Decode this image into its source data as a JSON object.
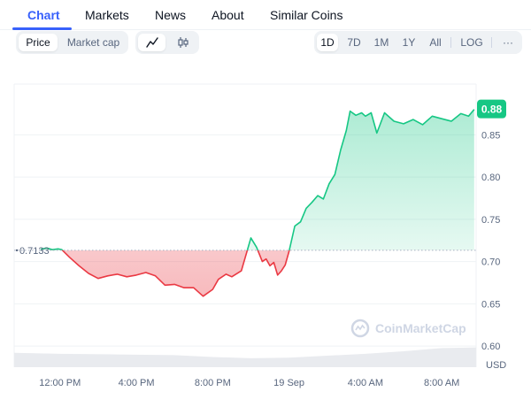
{
  "tabs": [
    {
      "label": "Chart"
    },
    {
      "label": "Markets"
    },
    {
      "label": "News"
    },
    {
      "label": "About"
    },
    {
      "label": "Similar Coins"
    }
  ],
  "toolbar": {
    "price_label": "Price",
    "market_cap_label": "Market cap",
    "line_icon": "line-chart-icon",
    "candle_icon": "candlestick-icon",
    "ranges": [
      "1D",
      "7D",
      "1M",
      "1Y",
      "All"
    ],
    "log_label": "LOG",
    "more_label": "···"
  },
  "colors": {
    "accent": "#3861fb",
    "up": "#16c784",
    "down": "#ea3943",
    "text_muted": "#58667e"
  },
  "chart_data": {
    "type": "area",
    "reference_price": 0.7133,
    "reference_label": "0.7133",
    "current_price_label": "0.88",
    "y_ticks": [
      "0.85",
      "0.80",
      "0.75",
      "0.70",
      "0.65",
      "0.60"
    ],
    "y_unit": "USD",
    "ylim": [
      0.575,
      0.91
    ],
    "x_ticks": [
      "12:00 PM",
      "4:00 PM",
      "8:00 PM",
      "19 Sep",
      "4:00 AM",
      "8:00 AM"
    ],
    "x_tick_hours": [
      12,
      16,
      20,
      24,
      28,
      32
    ],
    "x_range_hours": [
      9.6,
      33.8
    ],
    "grid": true,
    "watermark": "CoinMarketCap",
    "series": [
      {
        "x_hours": [
          11.0,
          11.3,
          11.6,
          11.9,
          12.1,
          12.5,
          13.0,
          13.5,
          14.0,
          14.5,
          15.0,
          15.5,
          16.0,
          16.5,
          17.0,
          17.5,
          18.0,
          18.5,
          19.0,
          19.5,
          20.0,
          20.3,
          20.7,
          21.0,
          21.5,
          22.0,
          22.3,
          22.6,
          22.8,
          23.0,
          23.2,
          23.4,
          23.6,
          23.8,
          24.0,
          24.3,
          24.6,
          24.9,
          25.2,
          25.5,
          25.8,
          26.1,
          26.4,
          26.7,
          27.0,
          27.2,
          27.5,
          27.8,
          28.0,
          28.3,
          28.6,
          29.0,
          29.5,
          30.0,
          30.5,
          31.0,
          31.5,
          32.0,
          32.5,
          33.0,
          33.4,
          33.7
        ],
        "y": [
          0.7145,
          0.716,
          0.714,
          0.715,
          0.714,
          0.705,
          0.695,
          0.686,
          0.68,
          0.683,
          0.685,
          0.682,
          0.684,
          0.687,
          0.683,
          0.672,
          0.673,
          0.669,
          0.669,
          0.659,
          0.667,
          0.679,
          0.685,
          0.682,
          0.689,
          0.728,
          0.717,
          0.7,
          0.703,
          0.695,
          0.699,
          0.684,
          0.689,
          0.696,
          0.712,
          0.742,
          0.747,
          0.763,
          0.77,
          0.778,
          0.774,
          0.792,
          0.803,
          0.832,
          0.855,
          0.878,
          0.873,
          0.876,
          0.872,
          0.876,
          0.852,
          0.876,
          0.866,
          0.863,
          0.868,
          0.862,
          0.872,
          0.869,
          0.866,
          0.875,
          0.872,
          0.88
        ]
      }
    ],
    "volume": {
      "x_hours": [
        9.6,
        12.0,
        15.0,
        18.0,
        20.0,
        22.0,
        24.0,
        26.0,
        28.0,
        30.0,
        32.0,
        33.8
      ],
      "rel_height": [
        0.45,
        0.42,
        0.4,
        0.38,
        0.32,
        0.28,
        0.3,
        0.36,
        0.42,
        0.5,
        0.6,
        0.62
      ]
    }
  }
}
